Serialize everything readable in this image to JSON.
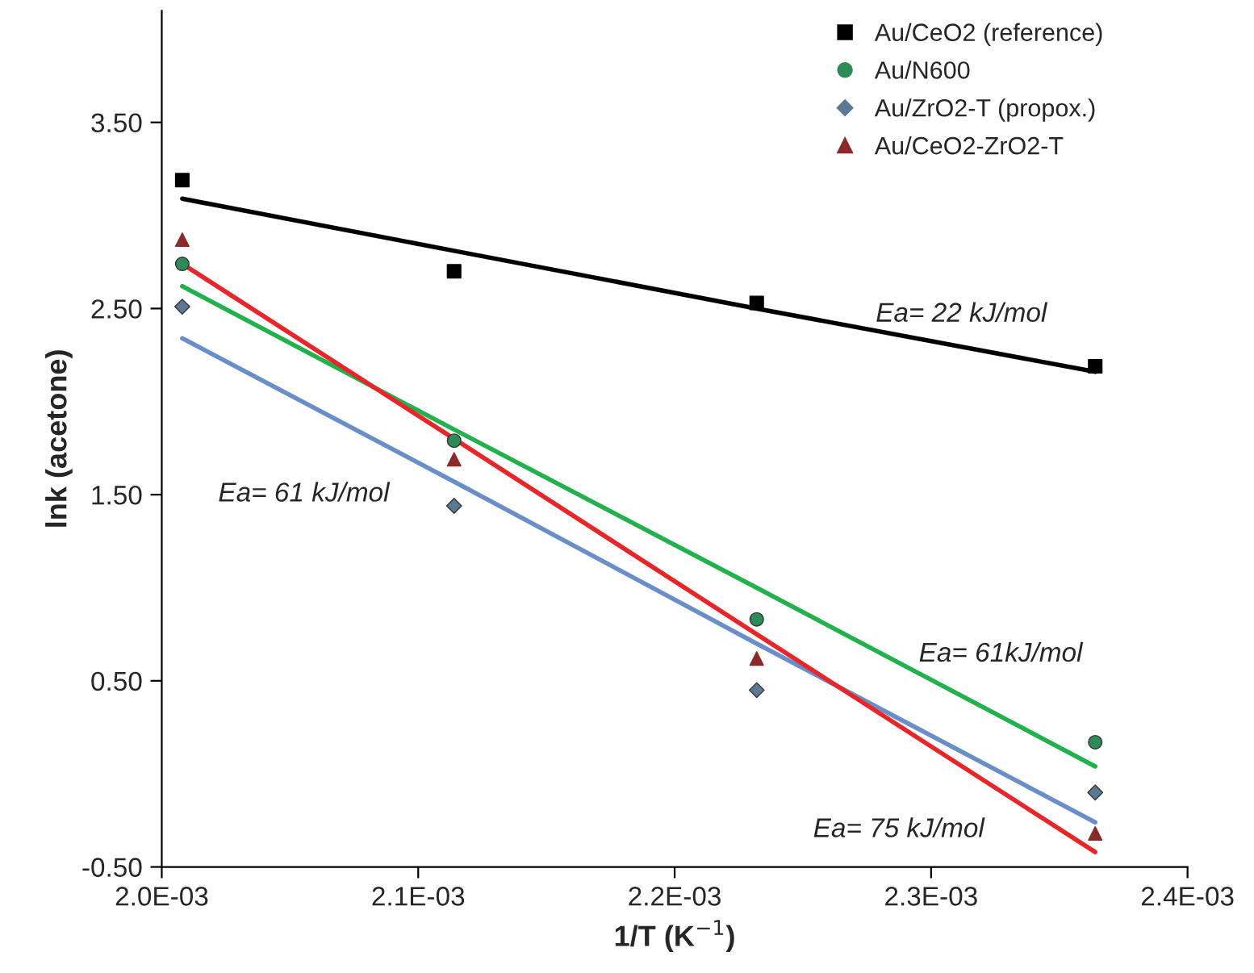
{
  "chart_data": {
    "type": "scatter",
    "xlabel": "1/T (K$^{−1}$)",
    "ylabel": "lnk (acetone)",
    "x": [
      0.002008,
      0.002114,
      0.002232,
      0.002364
    ],
    "series": [
      {
        "name": "Au/CeO2 (reference)",
        "color": "#000000",
        "marker": "square",
        "values": [
          3.19,
          2.7,
          2.53,
          2.19
        ]
      },
      {
        "name": "Au/N600",
        "color": "#2e8b57",
        "marker": "circle",
        "values": [
          2.74,
          1.79,
          0.83,
          0.17
        ]
      },
      {
        "name": "Au/ZrO2-T (propox.)",
        "color": "#5b7895",
        "marker": "diamond",
        "values": [
          2.51,
          1.44,
          0.45,
          -0.1
        ]
      },
      {
        "name": "Au/CeO2-ZrO2-T",
        "color": "#8b2a2a",
        "marker": "triangle",
        "values": [
          2.87,
          1.69,
          0.62,
          -0.32
        ]
      },
      {
        "type": "line",
        "color": "#000000",
        "values": [
          3.09,
          2.81,
          2.5,
          2.16
        ]
      },
      {
        "type": "line",
        "color": "#22b14c",
        "values": [
          2.62,
          1.85,
          1.0,
          0.04
        ]
      },
      {
        "type": "line",
        "color": "#6a8fc8",
        "values": [
          2.34,
          1.57,
          0.7,
          -0.26
        ]
      },
      {
        "type": "line",
        "color": "#e8262a",
        "values": [
          2.74,
          1.8,
          0.75,
          -0.42
        ]
      }
    ],
    "annotations": [
      "Ea= 22 kJ/mol",
      "Ea= 61 kJ/mol",
      "Ea= 61kJ/mol",
      "Ea= 75 kJ/mol"
    ],
    "xlim": [
      0.002,
      0.0024
    ],
    "xticks": [
      {
        "value": 0.002,
        "label": "2.0E-03"
      },
      {
        "value": 0.0021,
        "label": "2.1E-03"
      },
      {
        "value": 0.0022,
        "label": "2.2E-03"
      },
      {
        "value": 0.0023,
        "label": "2.3E-03"
      },
      {
        "value": 0.0024,
        "label": "2.4E-03"
      }
    ],
    "ylim": [
      -0.5,
      4.1
    ],
    "yticks": [
      {
        "value": -0.5,
        "label": "-0.50"
      },
      {
        "value": 0.5,
        "label": "0.50"
      },
      {
        "value": 1.5,
        "label": "1.50"
      },
      {
        "value": 2.5,
        "label": "2.50"
      },
      {
        "value": 3.5,
        "label": "3.50"
      }
    ],
    "grid": false,
    "legend": "top right",
    "line_style": "solid"
  }
}
